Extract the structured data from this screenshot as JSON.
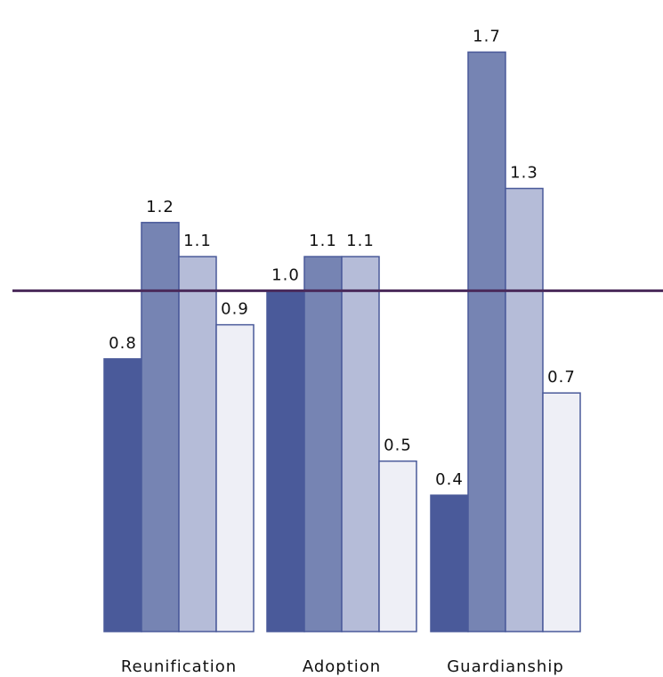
{
  "chart_data": {
    "type": "bar",
    "categories": [
      "Reunification",
      "Adoption",
      "Guardianship"
    ],
    "series": [
      {
        "values": [
          0.8,
          1.0,
          0.4
        ],
        "color": "#4a5a9a"
      },
      {
        "values": [
          1.2,
          1.1,
          1.7
        ],
        "color": "#7684b3"
      },
      {
        "values": [
          1.1,
          1.1,
          1.3
        ],
        "color": "#b5bcd8"
      },
      {
        "values": [
          0.9,
          0.5,
          0.7
        ],
        "color": "#eeeff6"
      }
    ],
    "value_labels": [
      [
        "0.8",
        "1.0",
        "0.4"
      ],
      [
        "1.2",
        "1.1",
        "1.7"
      ],
      [
        "1.1",
        "1.1",
        "1.3"
      ],
      [
        "0.9",
        "0.5",
        "0.7"
      ]
    ],
    "reference_line": {
      "value": 1.0,
      "color": "#4a2a5a"
    },
    "ylim": [
      0,
      1.73
    ],
    "grid": false,
    "legend": "none"
  }
}
